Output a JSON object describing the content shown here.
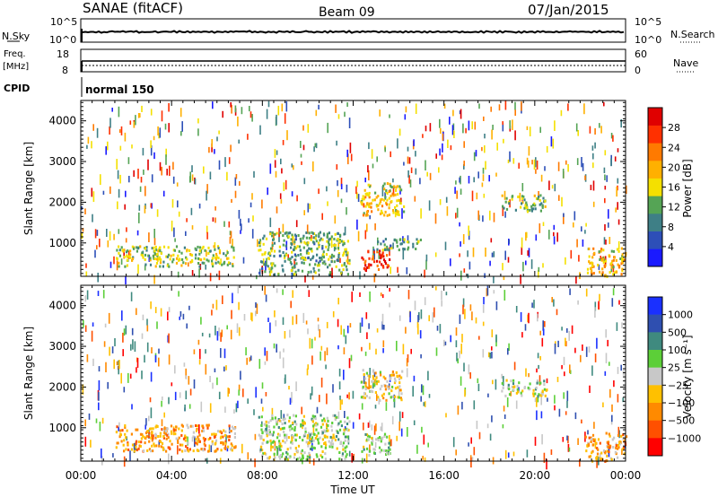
{
  "header": {
    "title_left": "SANAE (fitACF)",
    "title_center": "Beam 09",
    "title_right": "07/Jan/2015"
  },
  "strips": {
    "nsky": {
      "left_label": "N.Sky",
      "right_label": "N.Search",
      "left_ticks": [
        "10^5",
        "10^0"
      ],
      "right_ticks": [
        "10^5",
        "10^0"
      ]
    },
    "freq": {
      "left_label_1": "Freq.",
      "left_label_2": "[MHz]",
      "right_label": "Nave",
      "left_ticks": [
        "18",
        "8"
      ],
      "right_ticks": [
        "60",
        "0"
      ]
    },
    "cpid": {
      "label": "CPID",
      "value": "normal 150"
    }
  },
  "chart_data": [
    {
      "type": "heatmap",
      "name": "power",
      "ylabel": "Slant Range [km]",
      "xlabel": "",
      "ylim": [
        180,
        4500
      ],
      "yticks": [
        "1000",
        "2000",
        "3000",
        "4000"
      ],
      "ytick_values": [
        1000,
        2000,
        3000,
        4000
      ],
      "colorbar_label": "Power [dB]",
      "colorbar_ticks": [
        "4",
        "8",
        "12",
        "16",
        "20",
        "24",
        "28"
      ],
      "colorbar_tick_values": [
        4,
        8,
        12,
        16,
        20,
        24,
        28
      ],
      "colorbar_range": [
        0,
        32
      ],
      "colors": [
        "#1a1aff",
        "#2d4fb8",
        "#3e7f86",
        "#55a455",
        "#f4e000",
        "#ffb000",
        "#ff7a00",
        "#ff3000",
        "#e00000"
      ],
      "regions": [
        {
          "x_start": 1.5,
          "x_end": 6.8,
          "r_start": 450,
          "r_end": 950,
          "level": 0.45
        },
        {
          "x_start": 7.8,
          "x_end": 11.8,
          "r_start": 250,
          "r_end": 1300,
          "level": 0.35
        },
        {
          "x_start": 12.3,
          "x_end": 13.6,
          "r_start": 350,
          "r_end": 850,
          "level": 0.9
        },
        {
          "x_start": 12.3,
          "x_end": 14.2,
          "r_start": 1700,
          "r_end": 2500,
          "level": 0.55
        },
        {
          "x_start": 13.0,
          "x_end": 15.0,
          "r_start": 850,
          "r_end": 1150,
          "level": 0.35
        },
        {
          "x_start": 18.5,
          "x_end": 20.5,
          "r_start": 1800,
          "r_end": 2200,
          "level": 0.4
        },
        {
          "x_start": 22.2,
          "x_end": 24.0,
          "r_start": 200,
          "r_end": 900,
          "level": 0.6
        }
      ]
    },
    {
      "type": "heatmap",
      "name": "velocity",
      "ylabel": "Slant Range [km]",
      "xlabel": "Time UT",
      "ylim": [
        180,
        4500
      ],
      "yticks": [
        "1000",
        "2000",
        "3000",
        "4000"
      ],
      "ytick_values": [
        1000,
        2000,
        3000,
        4000
      ],
      "xlim": [
        0,
        24
      ],
      "xticks": [
        "00:00",
        "04:00",
        "08:00",
        "12:00",
        "16:00",
        "20:00",
        "00:00"
      ],
      "xtick_values": [
        0,
        4,
        8,
        12,
        16,
        20,
        24
      ],
      "colorbar_label": "Velocity [m s⁻¹]",
      "colorbar_ticks": [
        "1000",
        "500",
        "100",
        "25",
        "−25",
        "−100",
        "−500",
        "−1000"
      ],
      "colors": [
        "#1a30ff",
        "#2f4fb0",
        "#3f8a7f",
        "#5ccf38",
        "#c8c8c8",
        "#ffc000",
        "#ff8a00",
        "#ff5000",
        "#ff0000"
      ],
      "regions": [
        {
          "x_start": 1.5,
          "x_end": 6.8,
          "r_start": 450,
          "r_end": 1100,
          "level": 0.7
        },
        {
          "x_start": 7.8,
          "x_end": 11.8,
          "r_start": 250,
          "r_end": 1350,
          "level": 0.45
        },
        {
          "x_start": 12.3,
          "x_end": 13.6,
          "r_start": 350,
          "r_end": 900,
          "level": 0.4
        },
        {
          "x_start": 12.3,
          "x_end": 14.2,
          "r_start": 1700,
          "r_end": 2450,
          "level": 0.6
        },
        {
          "x_start": 18.5,
          "x_end": 20.5,
          "r_start": 1800,
          "r_end": 2200,
          "level": 0.45
        },
        {
          "x_start": 22.2,
          "x_end": 24.0,
          "r_start": 200,
          "r_end": 900,
          "level": 0.7
        }
      ]
    }
  ]
}
